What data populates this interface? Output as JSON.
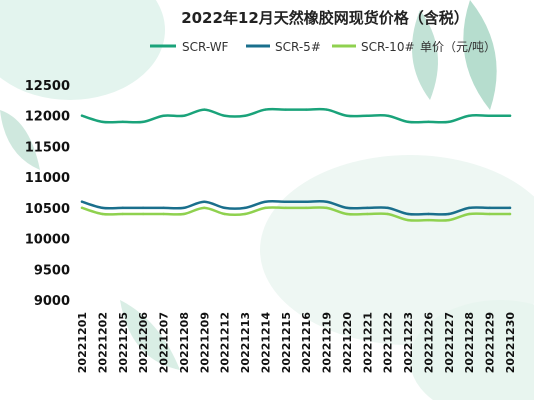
{
  "chart_data": {
    "type": "line",
    "title": "2022年12月天然橡胶网现货价格（含税）",
    "unit_label": "单价（元/吨）",
    "categories": [
      "20221201",
      "20221202",
      "20221205",
      "20221206",
      "20221207",
      "20221208",
      "20221209",
      "20221212",
      "20221213",
      "20221214",
      "20221215",
      "20221216",
      "20221219",
      "20221220",
      "20221221",
      "20221222",
      "20221223",
      "20221226",
      "20221227",
      "20221228",
      "20221229",
      "20221230"
    ],
    "series": [
      {
        "name": "SCR-WF",
        "color": "#1aa37a",
        "values": [
          12000,
          11900,
          11900,
          11900,
          12000,
          12000,
          12100,
          12000,
          12000,
          12100,
          12100,
          12100,
          12100,
          12000,
          12000,
          12000,
          11900,
          11900,
          11900,
          12000,
          12000,
          12000
        ]
      },
      {
        "name": "SCR-5#",
        "color": "#1a6f8c",
        "values": [
          10600,
          10500,
          10500,
          10500,
          10500,
          10500,
          10600,
          10500,
          10500,
          10600,
          10600,
          10600,
          10600,
          10500,
          10500,
          10500,
          10400,
          10400,
          10400,
          10500,
          10500,
          10500
        ]
      },
      {
        "name": "SCR-10#",
        "color": "#8fd14f",
        "values": [
          10500,
          10400,
          10400,
          10400,
          10400,
          10400,
          10500,
          10400,
          10400,
          10500,
          10500,
          10500,
          10500,
          10400,
          10400,
          10400,
          10300,
          10300,
          10300,
          10400,
          10400,
          10400
        ]
      }
    ],
    "ylim": [
      9000,
      12500
    ],
    "yticks": [
      "12500",
      "12000",
      "11500",
      "11000",
      "10500",
      "10000",
      "9500",
      "9000"
    ],
    "legend_position": "top",
    "grid": false
  }
}
